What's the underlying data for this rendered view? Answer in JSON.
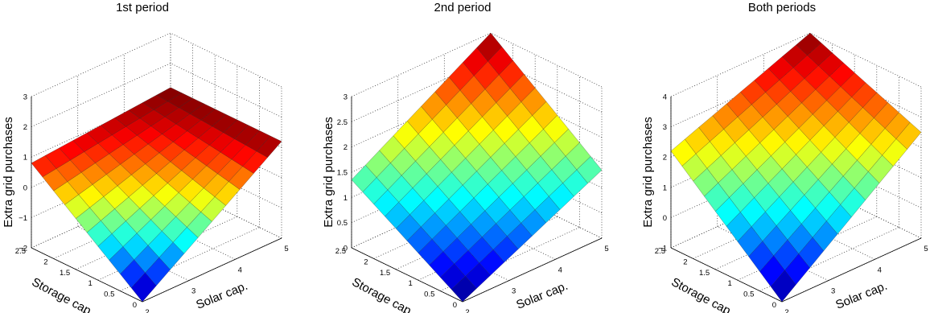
{
  "chart_data": [
    {
      "type": "surface",
      "title": "1st period",
      "xlabel": "Solar cap.",
      "ylabel": "Storage cap.",
      "zlabel": "Extra grid purchases",
      "xlim": [
        2,
        5
      ],
      "ylim": [
        0,
        2.5
      ],
      "zlim": [
        -2,
        3
      ],
      "xticks": [
        2,
        3,
        4,
        5
      ],
      "yticks": [
        0,
        0.5,
        1,
        1.5,
        2,
        2.5
      ],
      "zticks": [
        -2,
        -1,
        0,
        1,
        2,
        3
      ],
      "xtick_labels": [
        "2",
        "3",
        "4",
        "5"
      ],
      "ytick_labels": [
        "0",
        "0.5",
        "1",
        "1.5",
        "2",
        "2.5"
      ],
      "ztick_labels": [
        "−2",
        "−1",
        "0",
        "1",
        "2",
        "3"
      ],
      "surface": {
        "x_range": [
          2,
          5
        ],
        "y_range": [
          0,
          2.5
        ],
        "corner_values": {
          "x2_y0": -2.0,
          "x5_y0": 1.2,
          "x2_y2.5": 0.8,
          "x5_y2.5": 1.2
        },
        "z_range": [
          -2.0,
          1.2
        ]
      },
      "grid": true,
      "colormap": "jet"
    },
    {
      "type": "surface",
      "title": "2nd period",
      "xlabel": "Solar cap.",
      "ylabel": "Storage cap.",
      "zlabel": "Extra grid purchases",
      "xlim": [
        2,
        5
      ],
      "ylim": [
        0,
        2.5
      ],
      "zlim": [
        0,
        3
      ],
      "xticks": [
        2,
        3,
        4,
        5
      ],
      "yticks": [
        0,
        0.5,
        1,
        1.5,
        2,
        2.5
      ],
      "zticks": [
        0,
        0.5,
        1,
        1.5,
        2,
        2.5,
        3
      ],
      "xtick_labels": [
        "2",
        "3",
        "4",
        "5"
      ],
      "ytick_labels": [
        "0",
        "0.5",
        "1",
        "1.5",
        "2",
        "2.5"
      ],
      "ztick_labels": [
        "0",
        "0.5",
        "1",
        "1.5",
        "2",
        "2.5",
        "3"
      ],
      "surface": {
        "x_range": [
          2,
          5
        ],
        "y_range": [
          0,
          2.5
        ],
        "corner_values": {
          "x2_y0": 0.0,
          "x5_y0": 1.35,
          "x2_y2.5": 1.35,
          "x5_y2.5": 3.0
        },
        "z_range": [
          0.0,
          3.0
        ]
      },
      "grid": true,
      "colormap": "jet"
    },
    {
      "type": "surface",
      "title": "Both periods",
      "xlabel": "Solar cap.",
      "ylabel": "Storage cap.",
      "zlabel": "Extra grid purchases",
      "xlim": [
        2,
        5
      ],
      "ylim": [
        0,
        2.5
      ],
      "zlim": [
        -1,
        4
      ],
      "xticks": [
        2,
        3,
        4,
        5
      ],
      "yticks": [
        0,
        0.5,
        1,
        1.5,
        2,
        2.5
      ],
      "zticks": [
        -1,
        0,
        1,
        2,
        3,
        4
      ],
      "xtick_labels": [
        "2",
        "3",
        "4",
        "5"
      ],
      "ytick_labels": [
        "0",
        "0.5",
        "1",
        "1.5",
        "2",
        "2.5"
      ],
      "ztick_labels": [
        "−1",
        "0",
        "1",
        "2",
        "3",
        "4"
      ],
      "surface": {
        "x_range": [
          2,
          5
        ],
        "y_range": [
          0,
          2.5
        ],
        "corner_values": {
          "x2_y0": -1.0,
          "x5_y0": 2.5,
          "x2_y2.5": 2.2,
          "x5_y2.5": 4.0
        },
        "z_range": [
          -1.0,
          4.0
        ]
      },
      "grid": true,
      "colormap": "jet"
    }
  ]
}
